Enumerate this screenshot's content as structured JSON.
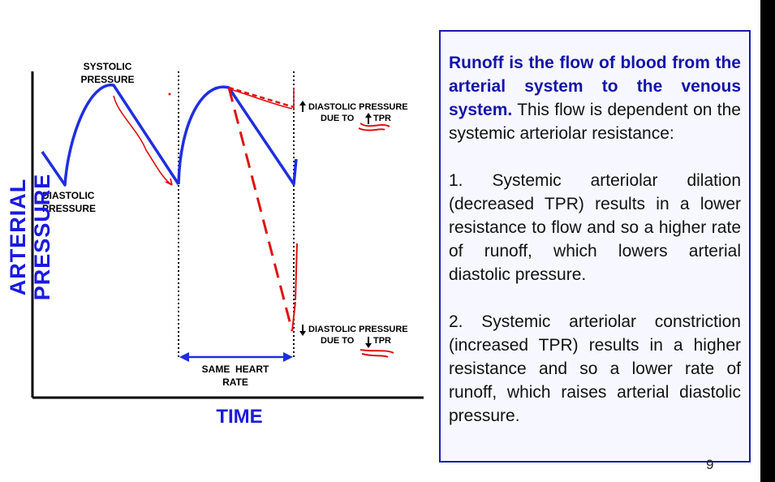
{
  "diagram": {
    "labels": {
      "systolic": "SYSTOLIC\nPRESSURE",
      "diastolic": "DIASTOLIC\nPRESSURE",
      "upper_note_line1": "DIASTOLIC  PRESSURE",
      "upper_note_line2": "DUE  TO",
      "upper_note_tpr": "TPR",
      "lower_note_line1": "DIASTOLIC  PRESSURE",
      "lower_note_line2": "DUE  TO",
      "lower_note_tpr": "TPR",
      "same_heart_rate": "SAME  HEART\nRATE"
    },
    "y_axis_label": "ARTERIAL  PRESSURE",
    "x_axis_label": "TIME",
    "colors": {
      "curve": "#1f2ee0",
      "annotation": "#e01010",
      "axis_label": "#1a1adf"
    }
  },
  "info_box": {
    "intro_bold": "Runoff is the flow of blood from the arterial system to the venous system.",
    "intro_rest": "This flow is dependent on the systemic arteriolar resistance:",
    "point1": "1.   Systemic arteriolar dilation (decreased TPR) results in a lower resistance to flow and so a higher rate of runoff, which lowers arterial diastolic pressure.",
    "point2": "2. Systemic arteriolar constriction (increased TPR) results in a higher resistance and so a lower rate of runoff, which raises arterial diastolic pressure."
  },
  "page_number": "9"
}
